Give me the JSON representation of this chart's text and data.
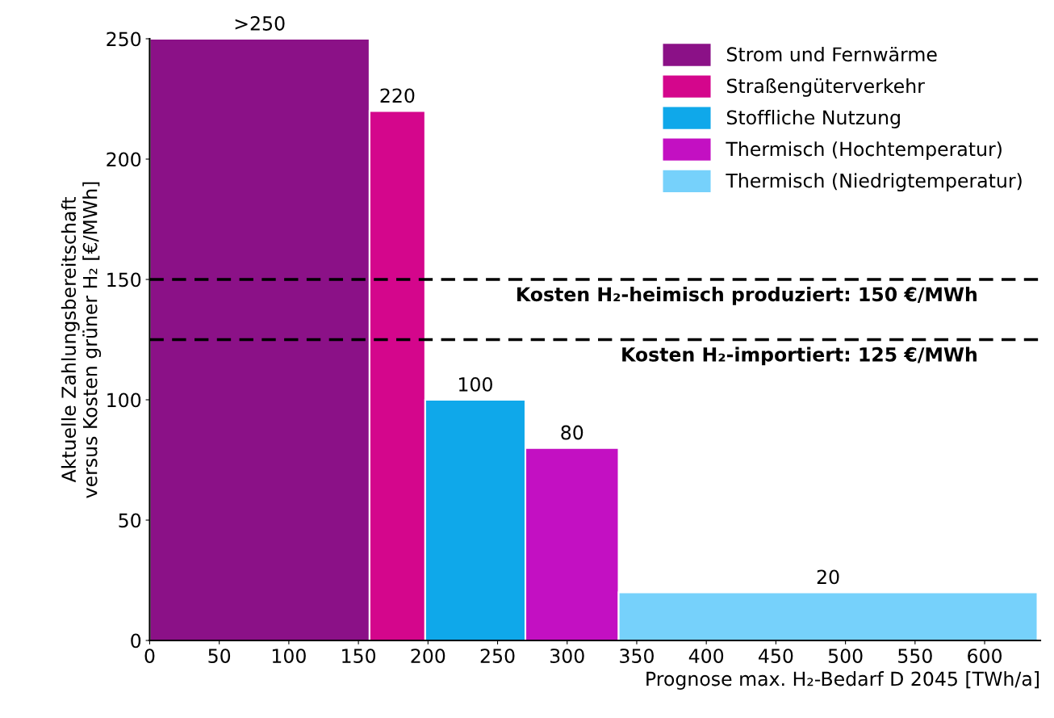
{
  "chart_data": {
    "type": "histogram",
    "xlabel": "Prognose max. H₂-Bedarf D 2045 [TWh/a]",
    "ylabel": "Aktuelle Zahlungsbereitschaft\nversus Kosten grüner H₂ [€/MWh]",
    "bins": [
      0,
      158,
      198,
      270,
      337,
      638
    ],
    "series": [
      {
        "name": "Strom und Fernwärme",
        "color": "#8b1187",
        "values": [
          250,
          null,
          null,
          null,
          null
        ],
        "value_labels": [
          ">250",
          null,
          null,
          null,
          null
        ]
      },
      {
        "name": "Straßengüterverkehr",
        "color": "#d4068c",
        "values": [
          null,
          220,
          null,
          null,
          null
        ],
        "value_labels": [
          null,
          "220",
          null,
          null,
          null
        ]
      },
      {
        "name": "Stoffliche Nutzung",
        "color": "#0fa8ea",
        "values": [
          null,
          null,
          100,
          null,
          null
        ],
        "value_labels": [
          null,
          null,
          "100",
          null,
          null
        ]
      },
      {
        "name": "Thermisch (Hochtemperatur)",
        "color": "#c310c2",
        "values": [
          null,
          null,
          null,
          80,
          null
        ],
        "value_labels": [
          null,
          null,
          null,
          "80",
          null
        ]
      },
      {
        "name": "Thermisch (Niedrigtemperatur)",
        "color": "#76d1fb",
        "values": [
          null,
          null,
          null,
          null,
          20
        ],
        "value_labels": [
          null,
          null,
          null,
          null,
          "20"
        ]
      }
    ],
    "ref_lines": [
      {
        "axis": "y",
        "value": 150,
        "label": "Kosten H₂-heimisch produziert: 150 €/MWh",
        "color": "#000000",
        "line_style": "dashed"
      },
      {
        "axis": "y",
        "value": 125,
        "label": "Kosten H₂-importiert: 125 €/MWh",
        "color": "#000000",
        "line_style": "dashed"
      }
    ],
    "xlim": [
      0,
      640
    ],
    "ylim": [
      0,
      250
    ],
    "xticks": [
      0,
      50,
      100,
      150,
      200,
      250,
      300,
      350,
      400,
      450,
      500,
      550,
      600
    ],
    "yticks": [
      0,
      50,
      100,
      150,
      200,
      250
    ],
    "grid": false,
    "legend": "top right"
  }
}
